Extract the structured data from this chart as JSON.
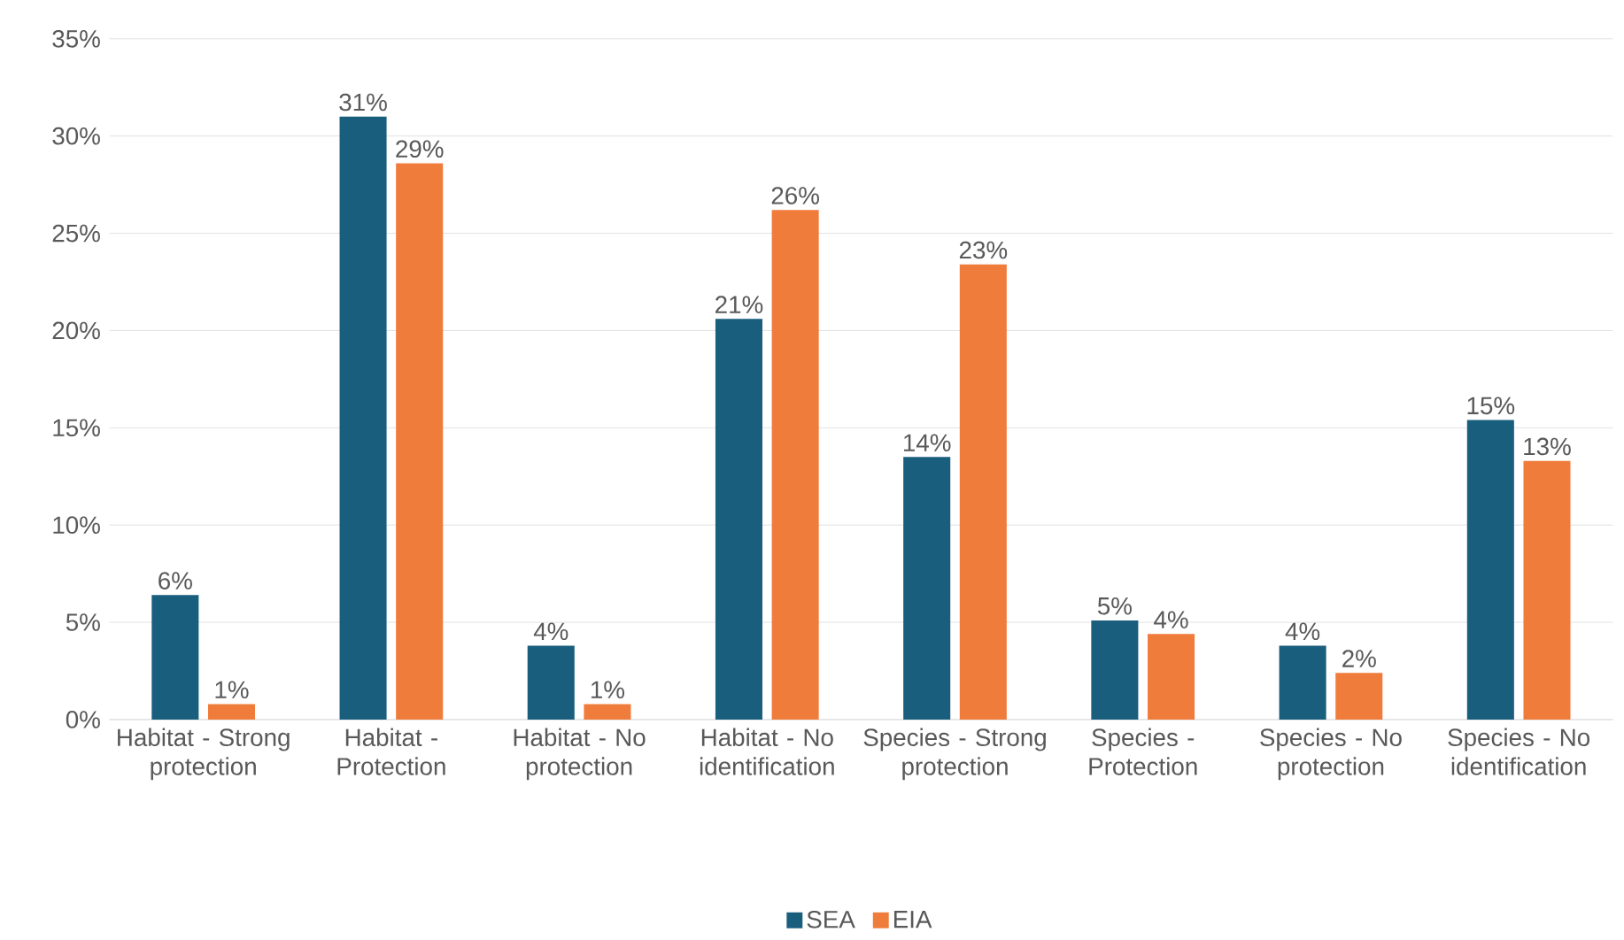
{
  "chart_data": {
    "type": "bar",
    "categories": [
      "Habitat - Strong protection",
      "Habitat - Protection",
      "Habitat - No protection",
      "Habitat - No identification",
      "Species - Strong protection",
      "Species - Protection",
      "Species - No protection",
      "Species - No identification"
    ],
    "series": [
      {
        "name": "SEA",
        "color": "#1a5e7e",
        "values": [
          6.4,
          31.0,
          3.8,
          20.6,
          13.5,
          5.1,
          3.8,
          15.4
        ],
        "value_labels": [
          "6%",
          "31%",
          "4%",
          "21%",
          "14%",
          "5%",
          "4%",
          "15%"
        ]
      },
      {
        "name": "EIA",
        "color": "#f07c3c",
        "values": [
          0.8,
          28.6,
          0.8,
          26.2,
          23.4,
          4.4,
          2.4,
          13.3
        ],
        "value_labels": [
          "1%",
          "29%",
          "1%",
          "26%",
          "23%",
          "4%",
          "2%",
          "13%"
        ]
      }
    ],
    "ylim": [
      0,
      35
    ],
    "yticks": [
      {
        "value": 0,
        "label": "0%"
      },
      {
        "value": 5,
        "label": "5%"
      },
      {
        "value": 10,
        "label": "10%"
      },
      {
        "value": 15,
        "label": "15%"
      },
      {
        "value": 20,
        "label": "20%"
      },
      {
        "value": 25,
        "label": "25%"
      },
      {
        "value": 30,
        "label": "30%"
      },
      {
        "value": 35,
        "label": "35%"
      }
    ],
    "grid": "y",
    "legend": "bottom"
  }
}
